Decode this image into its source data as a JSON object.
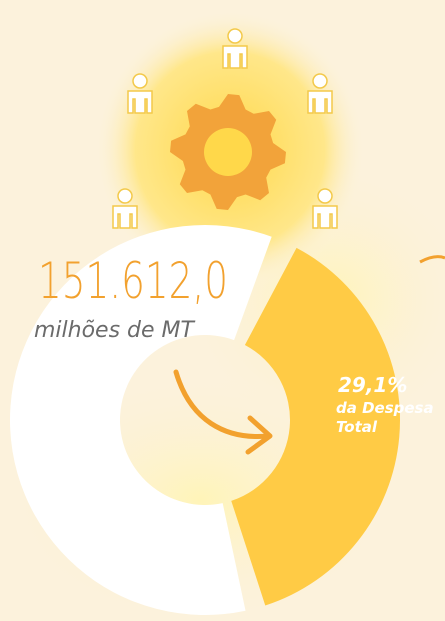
{
  "headline": {
    "amount": "151.612,0",
    "unit": "milhões de MT"
  },
  "share": {
    "label": "29,1%",
    "caption_lines": [
      "da Despesa",
      "Total"
    ]
  }
}
